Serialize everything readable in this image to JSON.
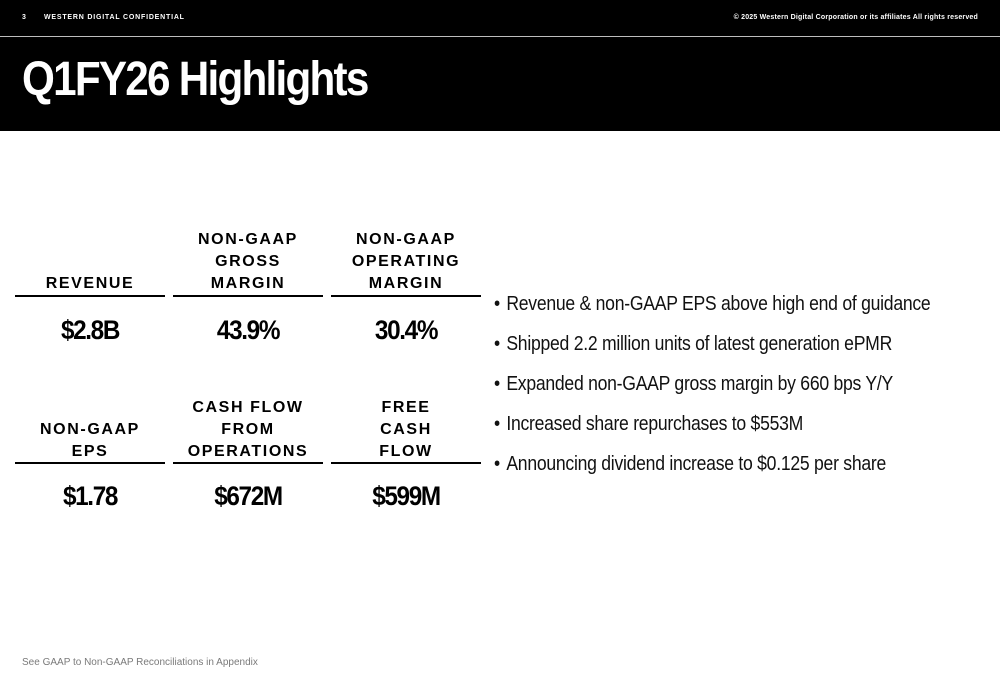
{
  "header": {
    "page_number": "3",
    "confidential": "WESTERN DIGITAL CONFIDENTIAL",
    "copyright": "© 2025 Western Digital Corporation or its affiliates  All rights reserved",
    "title": "Q1FY26 Highlights"
  },
  "metrics": [
    {
      "label": [
        "REVENUE"
      ],
      "value": "$2.8B"
    },
    {
      "label": [
        "NON-GAAP",
        "GROSS",
        "MARGIN"
      ],
      "value": "43.9%"
    },
    {
      "label": [
        "NON-GAAP",
        "OPERATING",
        "MARGIN"
      ],
      "value": "30.4%"
    },
    {
      "label": [
        "NON-GAAP",
        "EPS"
      ],
      "value": "$1.78"
    },
    {
      "label": [
        "CASH FLOW",
        "FROM",
        "OPERATIONS"
      ],
      "value": "$672M"
    },
    {
      "label": [
        "FREE",
        "CASH",
        "FLOW"
      ],
      "value": "$599M"
    }
  ],
  "bullets": [
    "Revenue & non-GAAP EPS above high end of guidance",
    "Shipped 2.2 million units of latest generation ePMR",
    "Expanded non-GAAP gross margin by 660 bps Y/Y",
    "Increased share repurchases to $553M",
    "Announcing dividend increase to $0.125 per share"
  ],
  "footnote": "See GAAP to Non-GAAP Reconciliations in Appendix"
}
